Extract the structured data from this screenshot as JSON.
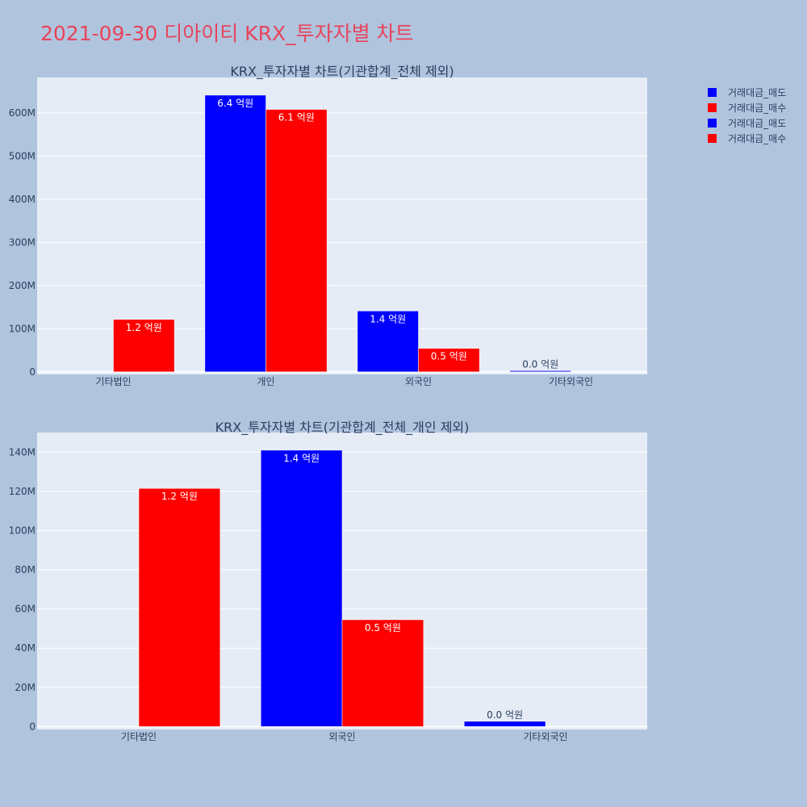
{
  "title": "2021-09-30 디아이티 KRX_투자자별 차트",
  "legend": [
    {
      "name": "거래대금_매도",
      "color": "#0000ff"
    },
    {
      "name": "거래대금_매수",
      "color": "#ff0000"
    },
    {
      "name": "거래대금_매도",
      "color": "#0000ff"
    },
    {
      "name": "거래대금_매수",
      "color": "#ff0000"
    }
  ],
  "colors": {
    "sell": "#0000ff",
    "buy": "#ff0000",
    "plot_bg": "#e5ecf6",
    "page_bg": "#b0c4de"
  },
  "chart_data": [
    {
      "type": "bar",
      "title": "KRX_투자자별 차트(기관합계_전체 제외)",
      "categories": [
        "기타법인",
        "개인",
        "외국인",
        "기타외국인"
      ],
      "series": [
        {
          "name": "거래대금_매도",
          "values": [
            0,
            641000000,
            141000000,
            2700000
          ],
          "labels": [
            "",
            "6.4 억원",
            "1.4 억원",
            "0.0 억원"
          ]
        },
        {
          "name": "거래대금_매수",
          "values": [
            121500000,
            608000000,
            54500000,
            0
          ],
          "labels": [
            "1.2 억원",
            "6.1 억원",
            "0.5 억원",
            ""
          ]
        }
      ],
      "ylim": [
        -6000000,
        682000000
      ],
      "yticks": [
        0,
        100000000,
        200000000,
        300000000,
        400000000,
        500000000,
        600000000
      ],
      "ytick_labels": [
        "0",
        "100M",
        "200M",
        "300M",
        "400M",
        "500M",
        "600M"
      ],
      "grid": true
    },
    {
      "type": "bar",
      "title": "KRX_투자자별 차트(기관합계_전체_개인 제외)",
      "categories": [
        "기타법인",
        "외국인",
        "기타외국인"
      ],
      "series": [
        {
          "name": "거래대금_매도",
          "values": [
            0,
            141000000,
            2700000
          ],
          "labels": [
            "",
            "1.4 억원",
            "0.0 억원"
          ]
        },
        {
          "name": "거래대금_매수",
          "values": [
            121500000,
            54500000,
            0
          ],
          "labels": [
            "1.2 억원",
            "0.5 억원",
            ""
          ]
        }
      ],
      "ylim": [
        -1500000,
        150000000
      ],
      "yticks": [
        0,
        20000000,
        40000000,
        60000000,
        80000000,
        100000000,
        120000000,
        140000000
      ],
      "ytick_labels": [
        "0",
        "20M",
        "40M",
        "60M",
        "80M",
        "100M",
        "120M",
        "140M"
      ],
      "grid": true
    }
  ]
}
